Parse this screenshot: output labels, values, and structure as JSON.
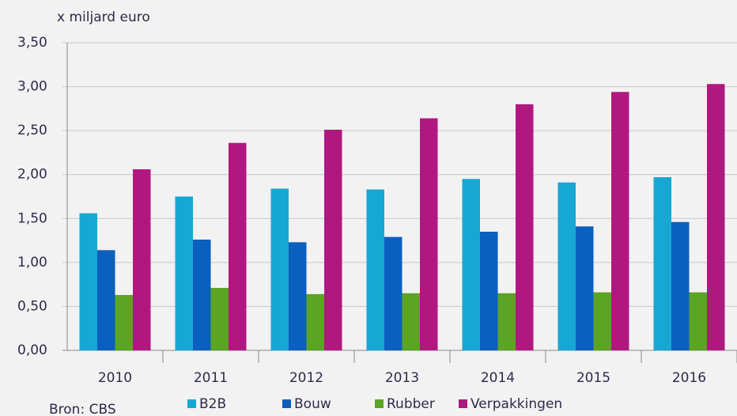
{
  "chart_data": {
    "type": "bar",
    "y_axis_label": "x miljard euro",
    "source": "Bron: CBS",
    "categories": [
      "2010",
      "2011",
      "2012",
      "2013",
      "2014",
      "2015",
      "2016"
    ],
    "series": [
      {
        "name": "B2B",
        "color": "#17a7d3",
        "values": [
          1.56,
          1.75,
          1.84,
          1.83,
          1.95,
          1.91,
          1.97
        ]
      },
      {
        "name": "Bouw",
        "color": "#0b5fbe",
        "values": [
          1.14,
          1.26,
          1.23,
          1.29,
          1.35,
          1.41,
          1.46
        ]
      },
      {
        "name": "Rubber",
        "color": "#5ba424",
        "values": [
          0.63,
          0.71,
          0.64,
          0.65,
          0.65,
          0.66,
          0.66
        ]
      },
      {
        "name": "Verpakkingen",
        "color": "#b0187f",
        "values": [
          2.06,
          2.36,
          2.51,
          2.64,
          2.8,
          2.94,
          3.03
        ]
      }
    ],
    "ylim": [
      0,
      3.5
    ],
    "yticks": [
      {
        "value": 0,
        "label": "0,00"
      },
      {
        "value": 0.5,
        "label": "0,50"
      },
      {
        "value": 1,
        "label": "1,00"
      },
      {
        "value": 1.5,
        "label": "1,50"
      },
      {
        "value": 2,
        "label": "2,00"
      },
      {
        "value": 2.5,
        "label": "2,50"
      },
      {
        "value": 3,
        "label": "3,00"
      },
      {
        "value": 3.5,
        "label": "3,50"
      }
    ],
    "grid": true
  }
}
